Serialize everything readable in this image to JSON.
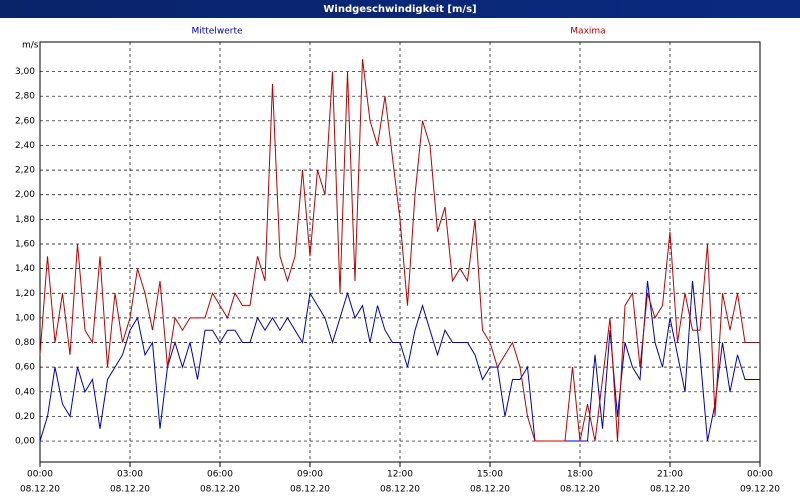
{
  "chart_data": {
    "type": "line",
    "title": "Windgeschwindigkeit [m/s]",
    "y_label": "m/s",
    "x": [
      0,
      0.25,
      0.5,
      0.75,
      1,
      1.25,
      1.5,
      1.75,
      2,
      2.25,
      2.5,
      2.75,
      3,
      3.25,
      3.5,
      3.75,
      4,
      4.25,
      4.5,
      4.75,
      5,
      5.25,
      5.5,
      5.75,
      6,
      6.25,
      6.5,
      6.75,
      7,
      7.25,
      7.5,
      7.75,
      8,
      8.25,
      8.5,
      8.75,
      9,
      9.25,
      9.5,
      9.75,
      10,
      10.25,
      10.5,
      10.75,
      11,
      11.25,
      11.5,
      11.75,
      12,
      12.25,
      12.5,
      12.75,
      13,
      13.25,
      13.5,
      13.75,
      14,
      14.25,
      14.5,
      14.75,
      15,
      15.25,
      15.5,
      15.75,
      16,
      16.25,
      16.5,
      16.75,
      17,
      17.25,
      17.5,
      17.75,
      18,
      18.25,
      18.5,
      18.75,
      19,
      19.25,
      19.5,
      19.75,
      20,
      20.25,
      20.5,
      20.75,
      21,
      21.25,
      21.5,
      21.75,
      22,
      22.25,
      22.5,
      22.75,
      23,
      23.25,
      23.5,
      23.75,
      24
    ],
    "series": [
      {
        "name": "Mittelwerte",
        "color": "#0000c0",
        "values": [
          0.0,
          0.2,
          0.6,
          0.3,
          0.2,
          0.6,
          0.4,
          0.5,
          0.1,
          0.5,
          0.6,
          0.7,
          0.9,
          1.0,
          0.7,
          0.8,
          0.1,
          0.6,
          0.8,
          0.6,
          0.8,
          0.5,
          0.9,
          0.9,
          0.8,
          0.9,
          0.9,
          0.8,
          0.8,
          1.0,
          0.9,
          1.0,
          0.9,
          1.0,
          0.9,
          0.8,
          1.2,
          1.1,
          1.0,
          0.8,
          1.0,
          1.2,
          1.0,
          1.1,
          0.8,
          1.1,
          0.9,
          0.8,
          0.8,
          0.6,
          0.9,
          1.1,
          0.9,
          0.7,
          0.9,
          0.8,
          0.8,
          0.8,
          0.7,
          0.5,
          0.6,
          0.6,
          0.2,
          0.5,
          0.5,
          0.6,
          0.0,
          0.0,
          0.0,
          0.0,
          0.0,
          0.0,
          0.0,
          0.0,
          0.7,
          0.1,
          0.9,
          0.2,
          0.8,
          0.6,
          0.5,
          1.3,
          0.8,
          0.6,
          1.0,
          0.7,
          0.4,
          1.3,
          0.7,
          0.0,
          0.3,
          0.8,
          0.4,
          0.7,
          0.5,
          0.5,
          0.5
        ]
      },
      {
        "name": "Maxima",
        "color": "#c00000",
        "values": [
          0.7,
          1.5,
          0.8,
          1.2,
          0.7,
          1.6,
          0.9,
          0.8,
          1.5,
          0.6,
          1.2,
          0.8,
          1.0,
          1.4,
          1.2,
          0.9,
          1.3,
          0.6,
          1.0,
          0.9,
          1.0,
          1.0,
          1.0,
          1.2,
          1.1,
          1.0,
          1.2,
          1.1,
          1.1,
          1.5,
          1.3,
          2.9,
          1.5,
          1.3,
          1.5,
          2.2,
          1.5,
          2.2,
          2.0,
          3.0,
          1.2,
          3.0,
          1.3,
          3.1,
          2.6,
          2.4,
          2.8,
          2.3,
          1.8,
          1.1,
          2.0,
          2.6,
          2.4,
          1.7,
          1.9,
          1.3,
          1.4,
          1.3,
          1.8,
          0.9,
          0.8,
          0.6,
          0.7,
          0.8,
          0.6,
          0.2,
          0.0,
          0.0,
          0.0,
          0.0,
          0.0,
          0.6,
          0.0,
          0.3,
          0.0,
          0.5,
          1.0,
          0.0,
          1.1,
          1.2,
          0.6,
          1.2,
          1.0,
          1.1,
          1.7,
          0.8,
          1.2,
          0.9,
          0.9,
          1.6,
          0.2,
          1.2,
          0.9,
          1.2,
          0.8,
          0.8,
          0.8
        ]
      }
    ],
    "xlim": [
      0,
      24
    ],
    "xticks": [
      {
        "value": 0,
        "label": [
          "00:00",
          "08.12.20"
        ]
      },
      {
        "value": 3,
        "label": [
          "03:00",
          "08.12.20"
        ]
      },
      {
        "value": 6,
        "label": [
          "06:00",
          "08.12.20"
        ]
      },
      {
        "value": 9,
        "label": [
          "09:00",
          "08.12.20"
        ]
      },
      {
        "value": 12,
        "label": [
          "12:00",
          "08.12.20"
        ]
      },
      {
        "value": 15,
        "label": [
          "15:00",
          "08.12.20"
        ]
      },
      {
        "value": 18,
        "label": [
          "18:00",
          "08.12.20"
        ]
      },
      {
        "value": 21,
        "label": [
          "21:00",
          "08.12.20"
        ]
      },
      {
        "value": 24,
        "label": [
          "00:00",
          "09.12.20"
        ]
      }
    ],
    "ylim": [
      -0.17,
      3.24
    ],
    "yticks": [
      {
        "value": 0,
        "label": "0,00"
      },
      {
        "value": 0.2,
        "label": "0,20"
      },
      {
        "value": 0.4,
        "label": "0,40"
      },
      {
        "value": 0.6,
        "label": "0,60"
      },
      {
        "value": 0.8,
        "label": "0,80"
      },
      {
        "value": 1,
        "label": "1,00"
      },
      {
        "value": 1.2,
        "label": "1,20"
      },
      {
        "value": 1.4,
        "label": "1,40"
      },
      {
        "value": 1.6,
        "label": "1,60"
      },
      {
        "value": 1.8,
        "label": "1,80"
      },
      {
        "value": 2,
        "label": "2,00"
      },
      {
        "value": 2.2,
        "label": "2,20"
      },
      {
        "value": 2.4,
        "label": "2,40"
      },
      {
        "value": 2.6,
        "label": "2,60"
      },
      {
        "value": 2.8,
        "label": "2,80"
      },
      {
        "value": 3,
        "label": "3,00"
      }
    ],
    "grid": true
  }
}
